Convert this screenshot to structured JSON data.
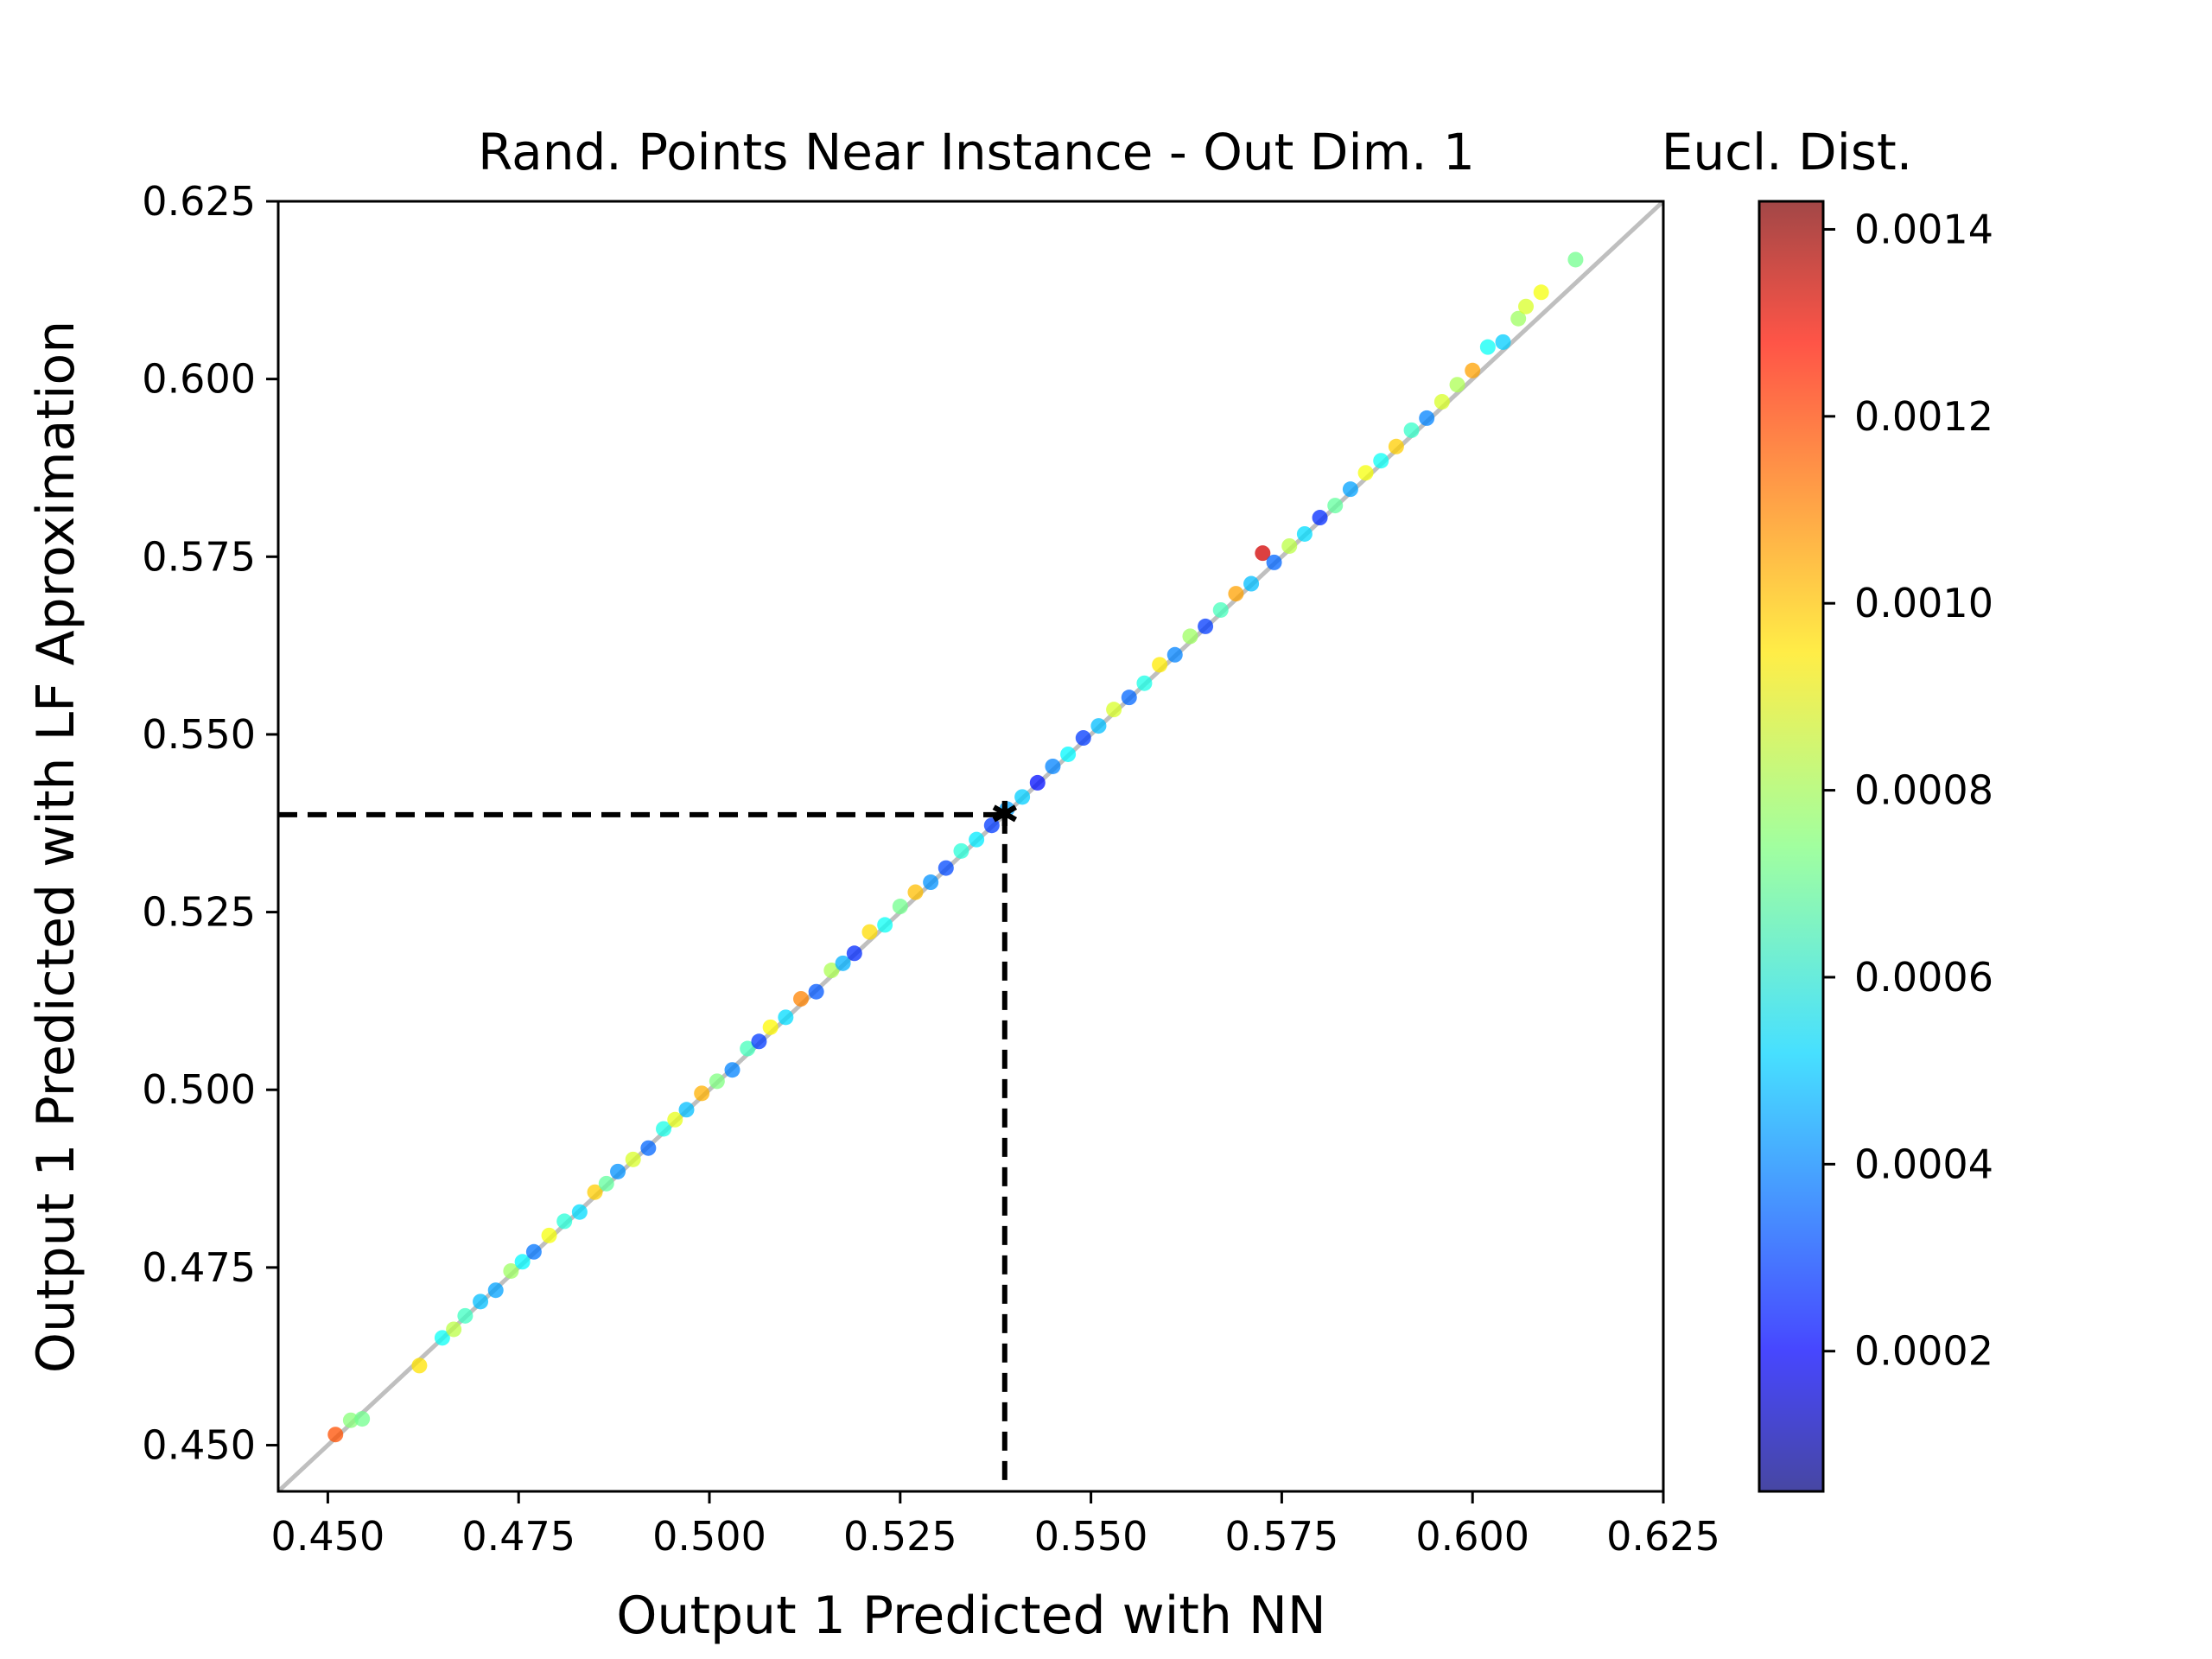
{
  "chart_data": {
    "type": "scatter",
    "title": "Rand. Points Near Instance - Out Dim. 1",
    "xlabel": "Output 1 Predicted with NN",
    "ylabel": "Output 1 Predicted with LF Aproximation",
    "xlim": [
      0.4435,
      0.625
    ],
    "ylim": [
      0.4435,
      0.625
    ],
    "xticks": [
      "0.450",
      "0.475",
      "0.500",
      "0.525",
      "0.550",
      "0.575",
      "0.600",
      "0.625"
    ],
    "yticks": [
      "0.450",
      "0.475",
      "0.500",
      "0.525",
      "0.550",
      "0.575",
      "0.600",
      "0.625"
    ],
    "grid": false,
    "reference_line": {
      "x": [
        0.4435,
        0.625
      ],
      "y": [
        0.4435,
        0.625
      ],
      "color": "#bfbfbf"
    },
    "instance_point": {
      "x": 0.5387,
      "y": 0.5387
    },
    "colorbar": {
      "label": "Eucl. Dist.",
      "range": [
        5e-05,
        0.00143
      ],
      "ticks": [
        "0.0002",
        "0.0004",
        "0.0006",
        "0.0008",
        "0.0010",
        "0.0012",
        "0.0014"
      ],
      "colormap": "jet"
    },
    "series": [
      {
        "points_xyd": [
          [
            0.451,
            0.4515,
            0.00115
          ],
          [
            0.453,
            0.4535,
            0.00075
          ],
          [
            0.4545,
            0.4537,
            0.00072
          ],
          [
            0.462,
            0.4612,
            0.00095
          ],
          [
            0.465,
            0.4651,
            0.00058
          ],
          [
            0.4665,
            0.4663,
            0.00082
          ],
          [
            0.468,
            0.4682,
            0.00065
          ],
          [
            0.47,
            0.4702,
            0.00048
          ],
          [
            0.472,
            0.4718,
            0.00044
          ],
          [
            0.474,
            0.4745,
            0.00078
          ],
          [
            0.4755,
            0.4758,
            0.00056
          ],
          [
            0.477,
            0.4772,
            0.00038
          ],
          [
            0.479,
            0.4795,
            0.0009
          ],
          [
            0.481,
            0.4815,
            0.00062
          ],
          [
            0.483,
            0.4828,
            0.00052
          ],
          [
            0.485,
            0.4856,
            0.00098
          ],
          [
            0.4865,
            0.4868,
            0.0007
          ],
          [
            0.488,
            0.4885,
            0.00042
          ],
          [
            0.49,
            0.4902,
            0.00086
          ],
          [
            0.492,
            0.4918,
            0.00036
          ],
          [
            0.494,
            0.4945,
            0.0006
          ],
          [
            0.4955,
            0.4958,
            0.00088
          ],
          [
            0.497,
            0.4972,
            0.00048
          ],
          [
            0.499,
            0.4995,
            0.00102
          ],
          [
            0.501,
            0.5012,
            0.00074
          ],
          [
            0.503,
            0.5028,
            0.0004
          ],
          [
            0.505,
            0.5058,
            0.00066
          ],
          [
            0.5065,
            0.5068,
            0.0003
          ],
          [
            0.508,
            0.5088,
            0.00092
          ],
          [
            0.51,
            0.5102,
            0.00052
          ],
          [
            0.512,
            0.5128,
            0.00108
          ],
          [
            0.514,
            0.5138,
            0.00034
          ],
          [
            0.516,
            0.5168,
            0.0008
          ],
          [
            0.5175,
            0.5178,
            0.00046
          ],
          [
            0.519,
            0.5192,
            0.00028
          ],
          [
            0.521,
            0.5222,
            0.00096
          ],
          [
            0.523,
            0.5232,
            0.00058
          ],
          [
            0.525,
            0.5258,
            0.00072
          ],
          [
            0.527,
            0.5278,
            0.001
          ],
          [
            0.529,
            0.5292,
            0.00042
          ],
          [
            0.531,
            0.5312,
            0.00032
          ],
          [
            0.533,
            0.5336,
            0.00062
          ],
          [
            0.535,
            0.5352,
            0.00054
          ],
          [
            0.537,
            0.5372,
            0.0003
          ],
          [
            0.539,
            0.5395,
            0.00044
          ],
          [
            0.541,
            0.5412,
            0.0005
          ],
          [
            0.543,
            0.5432,
            0.00024
          ],
          [
            0.545,
            0.5455,
            0.0004
          ],
          [
            0.547,
            0.5472,
            0.00056
          ],
          [
            0.549,
            0.5495,
            0.0003
          ],
          [
            0.551,
            0.5512,
            0.00048
          ],
          [
            0.553,
            0.5535,
            0.00086
          ],
          [
            0.555,
            0.5552,
            0.00036
          ],
          [
            0.557,
            0.5572,
            0.0006
          ],
          [
            0.559,
            0.5598,
            0.00094
          ],
          [
            0.561,
            0.5612,
            0.0004
          ],
          [
            0.563,
            0.5638,
            0.00078
          ],
          [
            0.565,
            0.5652,
            0.0003
          ],
          [
            0.567,
            0.5675,
            0.00066
          ],
          [
            0.569,
            0.5698,
            0.00104
          ],
          [
            0.571,
            0.5712,
            0.00048
          ],
          [
            0.5725,
            0.5755,
            0.00132
          ],
          [
            0.574,
            0.5742,
            0.00036
          ],
          [
            0.576,
            0.5765,
            0.00082
          ],
          [
            0.578,
            0.5782,
            0.00052
          ],
          [
            0.58,
            0.5805,
            0.00028
          ],
          [
            0.582,
            0.5822,
            0.0007
          ],
          [
            0.584,
            0.5845,
            0.00044
          ],
          [
            0.586,
            0.5868,
            0.0009
          ],
          [
            0.588,
            0.5885,
            0.00058
          ],
          [
            0.59,
            0.5905,
            0.00098
          ],
          [
            0.592,
            0.5928,
            0.00064
          ],
          [
            0.594,
            0.5945,
            0.0004
          ],
          [
            0.596,
            0.5968,
            0.00086
          ],
          [
            0.598,
            0.5992,
            0.0008
          ],
          [
            0.6,
            0.6012,
            0.00104
          ],
          [
            0.602,
            0.6045,
            0.00058
          ],
          [
            0.604,
            0.6052,
            0.0005
          ],
          [
            0.606,
            0.6085,
            0.00078
          ],
          [
            0.607,
            0.6102,
            0.00086
          ],
          [
            0.609,
            0.6122,
            0.0009
          ],
          [
            0.6135,
            0.6168,
            0.00072
          ]
        ]
      }
    ]
  }
}
